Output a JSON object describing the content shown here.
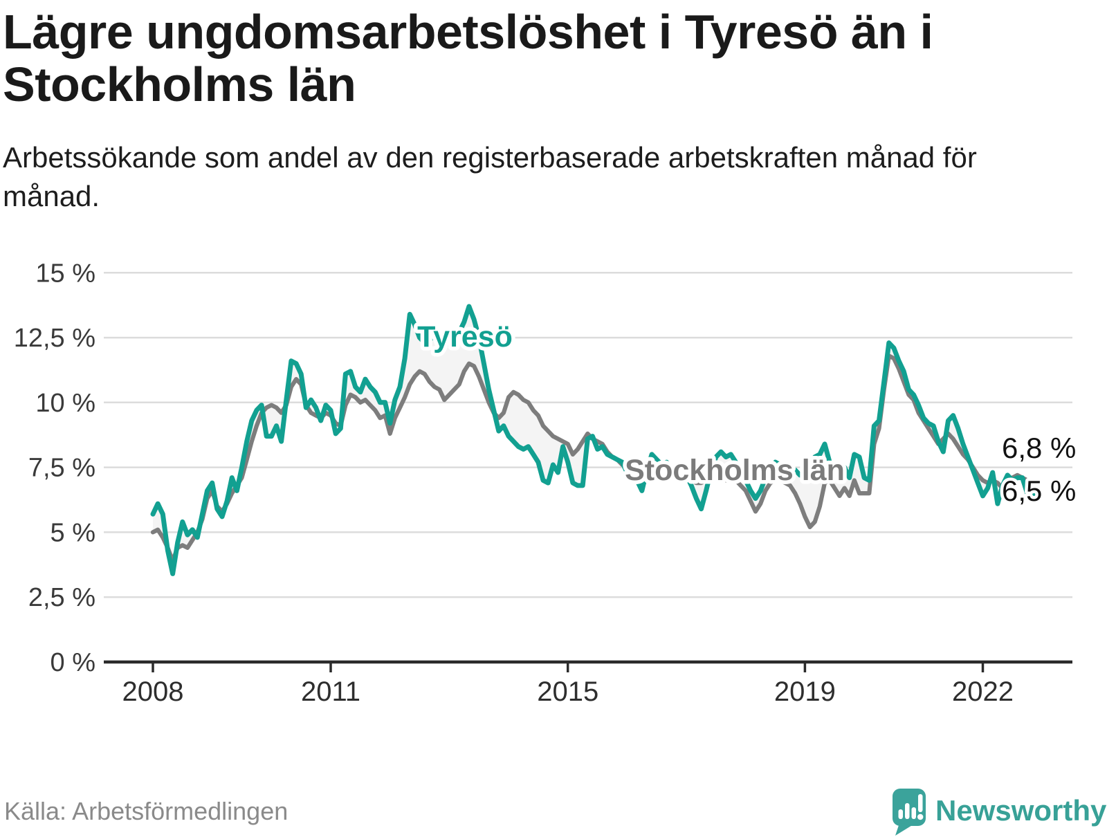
{
  "header": {
    "title": "Lägre ungdomsarbetslöshet i Tyresö än i Stockholms län",
    "subtitle": "Arbetssökande som andel av den registerbaserade arbetskraften månad för månad."
  },
  "chart_data": {
    "type": "line",
    "title": "Lägre ungdomsarbetslöshet i Tyresö än i Stockholms län",
    "unit": "%",
    "x_start": "2008-01",
    "x_step_months": 1,
    "x_end": "2022-12",
    "ylim": [
      0,
      15
    ],
    "grid": "horizontal",
    "legend_position": "inline-labels",
    "y_axis": {
      "ticks": [
        {
          "value": 0,
          "label": "0 %"
        },
        {
          "value": 2.5,
          "label": "2,5 %"
        },
        {
          "value": 5,
          "label": "5 %"
        },
        {
          "value": 7.5,
          "label": "7,5 %"
        },
        {
          "value": 10,
          "label": "10 %"
        },
        {
          "value": 12.5,
          "label": "12,5 %"
        },
        {
          "value": 15,
          "label": "15 %"
        }
      ]
    },
    "x_axis": {
      "ticks": [
        {
          "year": 2008,
          "label": "2008"
        },
        {
          "year": 2011,
          "label": "2011"
        },
        {
          "year": 2015,
          "label": "2015"
        },
        {
          "year": 2019,
          "label": "2019"
        },
        {
          "year": 2022,
          "label": "2022"
        }
      ]
    },
    "series": [
      {
        "name": "Tyresö",
        "color": "#12a091",
        "values": [
          5.7,
          6.1,
          5.7,
          4.3,
          3.4,
          4.6,
          5.4,
          4.9,
          5.1,
          4.8,
          5.7,
          6.6,
          6.9,
          5.9,
          5.6,
          6.2,
          7.1,
          6.6,
          7.5,
          8.5,
          9.3,
          9.7,
          9.9,
          8.7,
          8.7,
          9.1,
          8.5,
          10.1,
          11.6,
          11.5,
          11.1,
          9.8,
          10.1,
          9.8,
          9.3,
          9.9,
          9.7,
          8.8,
          9.0,
          11.1,
          11.2,
          10.6,
          10.4,
          10.9,
          10.6,
          10.4,
          10.0,
          10.0,
          9.2,
          10.1,
          10.6,
          11.7,
          13.4,
          13.0,
          12.5,
          12.3,
          12.4,
          12.6,
          12.4,
          12.2,
          12.3,
          12.4,
          12.7,
          13.1,
          13.7,
          13.2,
          12.5,
          11.5,
          10.5,
          9.7,
          8.9,
          9.1,
          8.7,
          8.5,
          8.3,
          8.2,
          8.3,
          8.0,
          7.7,
          7.0,
          6.9,
          7.6,
          7.3,
          8.3,
          7.7,
          6.9,
          6.8,
          6.8,
          8.6,
          8.7,
          8.2,
          8.3,
          8.0,
          7.9,
          7.8,
          7.7,
          7.3,
          7.2,
          7.0,
          6.6,
          7.4,
          8.0,
          7.8,
          7.6,
          7.7,
          7.4,
          7.3,
          7.4,
          7.2,
          6.8,
          6.3,
          5.9,
          6.6,
          7.4,
          7.9,
          8.1,
          7.9,
          8.0,
          7.7,
          7.3,
          7.0,
          6.6,
          6.3,
          6.6,
          7.1,
          7.5,
          7.7,
          7.6,
          7.4,
          7.3,
          7.4,
          7.2,
          7.2,
          7.5,
          7.9,
          8.0,
          8.4,
          7.7,
          7.5,
          7.3,
          7.5,
          7.1,
          8.0,
          7.9,
          7.1,
          7.0,
          9.1,
          9.3,
          10.8,
          12.3,
          12.1,
          11.6,
          11.2,
          10.5,
          10.3,
          9.9,
          9.4,
          9.2,
          9.1,
          8.5,
          8.1,
          9.3,
          9.5,
          9.0,
          8.4,
          7.9,
          7.4,
          6.9,
          6.4,
          6.7,
          7.3,
          6.1,
          6.8,
          7.2,
          7.0,
          7.1,
          7.1,
          6.5,
          6.4,
          6.5
        ]
      },
      {
        "name": "Stockholms län",
        "color": "#7d7d7d",
        "values": [
          5.0,
          5.1,
          4.8,
          4.4,
          3.9,
          4.4,
          4.5,
          4.4,
          4.7,
          5.0,
          5.5,
          6.3,
          6.6,
          6.0,
          5.8,
          6.1,
          6.5,
          6.8,
          7.1,
          7.8,
          8.5,
          9.1,
          9.6,
          9.8,
          9.9,
          9.8,
          9.6,
          9.9,
          10.6,
          10.9,
          10.7,
          9.9,
          9.6,
          9.5,
          9.4,
          9.6,
          9.5,
          9.2,
          9.1,
          9.9,
          10.3,
          10.2,
          10.0,
          10.1,
          9.9,
          9.7,
          9.4,
          9.5,
          8.8,
          9.4,
          9.8,
          10.2,
          10.7,
          11.0,
          11.2,
          11.1,
          10.8,
          10.6,
          10.5,
          10.1,
          10.3,
          10.5,
          10.7,
          11.2,
          11.5,
          11.4,
          11.0,
          10.5,
          10.0,
          9.6,
          9.4,
          9.6,
          10.2,
          10.4,
          10.3,
          10.1,
          10.0,
          9.7,
          9.5,
          9.1,
          8.9,
          8.7,
          8.6,
          8.5,
          8.4,
          8.0,
          8.2,
          8.5,
          8.8,
          8.6,
          8.5,
          8.4,
          8.1,
          7.9,
          7.8,
          7.6,
          7.6,
          7.5,
          7.3,
          7.1,
          7.3,
          7.5,
          7.6,
          7.4,
          7.2,
          7.2,
          7.1,
          7.1,
          7.0,
          7.0,
          6.9,
          6.9,
          7.0,
          7.1,
          7.2,
          7.1,
          7.0,
          7.1,
          7.0,
          6.8,
          6.6,
          6.2,
          5.8,
          6.1,
          6.6,
          6.9,
          7.0,
          7.0,
          6.9,
          6.8,
          6.5,
          6.1,
          5.6,
          5.2,
          5.4,
          6.0,
          6.9,
          7.0,
          6.7,
          6.4,
          6.7,
          6.4,
          7.0,
          6.5,
          6.5,
          6.5,
          8.4,
          9.0,
          10.5,
          11.8,
          11.7,
          11.3,
          10.8,
          10.3,
          10.1,
          9.6,
          9.3,
          9.0,
          8.7,
          8.4,
          8.6,
          8.8,
          8.6,
          8.3,
          8.0,
          7.8,
          7.5,
          7.2,
          7.0,
          6.9,
          7.0,
          6.9,
          6.7,
          7.0,
          7.1,
          7.2,
          7.1,
          7.0,
          6.7,
          6.8
        ]
      }
    ],
    "inline_labels": [
      {
        "text": "Tyresö",
        "color": "#12a091"
      },
      {
        "text": "Stockholms län",
        "color": "#7b7b7b"
      }
    ],
    "end_labels": [
      {
        "text": "6,8 %",
        "series": "Stockholms län",
        "value": 6.8
      },
      {
        "text": "6,5 %",
        "series": "Tyresö",
        "value": 6.5
      }
    ],
    "between_fill_color": "#f4f4f4"
  },
  "footer": {
    "source": "Källa: Arbetsförmedlingen",
    "brand": "Newsworthy"
  }
}
